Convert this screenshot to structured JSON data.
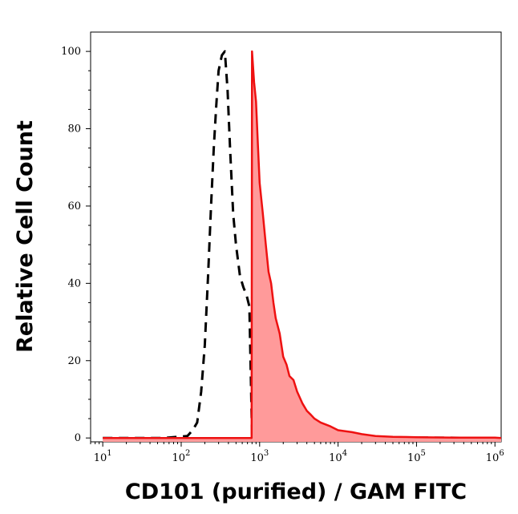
{
  "chart_data": {
    "type": "area",
    "title": "",
    "xlabel": "CD101 (purified) / GAM FITC",
    "ylabel": "Relative Cell Count",
    "xscale": "log",
    "xlim": [
      7,
      1200000
    ],
    "ylim": [
      -1,
      105
    ],
    "grid": false,
    "legend": "none",
    "x_ticks": [
      {
        "base": "10",
        "exp": "1",
        "value": 10
      },
      {
        "base": "10",
        "exp": "2",
        "value": 100
      },
      {
        "base": "10",
        "exp": "3",
        "value": 1000
      },
      {
        "base": "10",
        "exp": "4",
        "value": 10000
      },
      {
        "base": "10",
        "exp": "5",
        "value": 100000
      },
      {
        "base": "10",
        "exp": "6",
        "value": 1000000
      }
    ],
    "y_ticks": [
      {
        "label": "0",
        "value": 0
      },
      {
        "label": "20",
        "value": 20
      },
      {
        "label": "40",
        "value": 40
      },
      {
        "label": "60",
        "value": 60
      },
      {
        "label": "80",
        "value": 80
      },
      {
        "label": "100",
        "value": 100
      }
    ],
    "series": [
      {
        "style": "dashed",
        "color": "#000000",
        "fill": "none",
        "x": [
          10,
          60,
          120,
          140,
          160,
          180,
          200,
          220,
          240,
          260,
          280,
          300,
          330,
          360,
          390,
          420,
          460,
          500,
          560,
          620,
          680,
          740,
          800,
          1000,
          2000,
          10000,
          100000,
          1000000
        ],
        "y": [
          0,
          0,
          0.5,
          2,
          4,
          12,
          24,
          42,
          60,
          75,
          86,
          95,
          99,
          100,
          90,
          75,
          58,
          50,
          42,
          39,
          37,
          34,
          1,
          0.3,
          0.2,
          0.1,
          0.1,
          0
        ]
      },
      {
        "style": "solid",
        "color": "#ee1111",
        "fill": "#ff9a9a",
        "x": [
          10,
          100,
          400,
          790,
          800,
          850,
          900,
          950,
          1000,
          1100,
          1200,
          1300,
          1400,
          1500,
          1600,
          1800,
          2000,
          2200,
          2400,
          2700,
          3000,
          3500,
          4000,
          4500,
          5000,
          6000,
          8000,
          10000,
          15000,
          20000,
          30000,
          50000,
          100000,
          300000,
          1000000,
          1200000
        ],
        "y": [
          0,
          0,
          0,
          0,
          100,
          92,
          87,
          76,
          66,
          58,
          50,
          43,
          40,
          35,
          31,
          27,
          21,
          19,
          16,
          15,
          12,
          9,
          7,
          6,
          5,
          4,
          3,
          2,
          1.5,
          1,
          0.5,
          0.3,
          0.2,
          0.1,
          0.1,
          0
        ]
      }
    ]
  }
}
